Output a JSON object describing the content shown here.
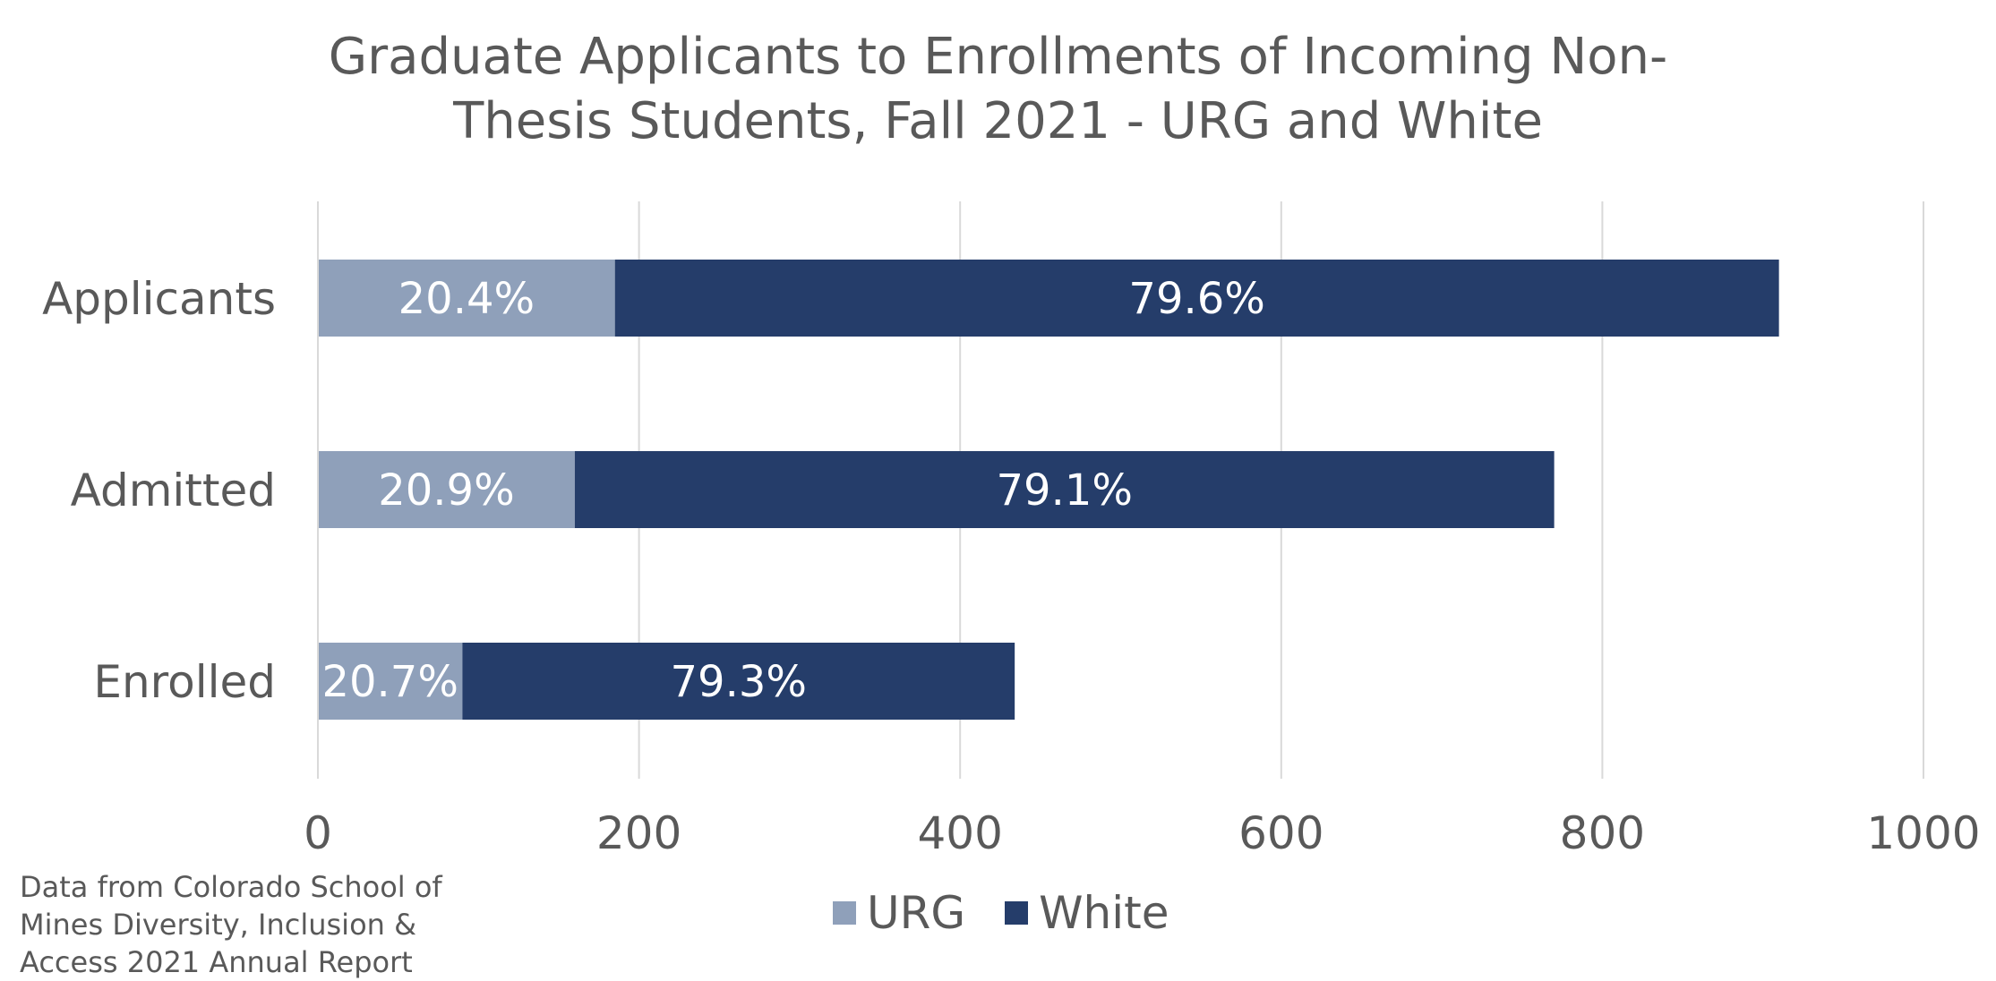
{
  "chart_data": {
    "type": "bar",
    "orientation": "horizontal",
    "stacked": true,
    "title_lines": [
      "Graduate Applicants to Enrollments of Incoming Non-",
      "Thesis Students, Fall 2021 - URG and White"
    ],
    "categories": [
      "Applicants",
      "Admitted",
      "Enrolled"
    ],
    "series": [
      {
        "name": "URG",
        "color": "#8FA0BA",
        "values": [
          185,
          160,
          90
        ],
        "labels": [
          "20.4%",
          "20.9%",
          "20.7%"
        ]
      },
      {
        "name": "White",
        "color": "#253D6A",
        "values": [
          725,
          610,
          344
        ],
        "labels": [
          "79.6%",
          "79.1%",
          "79.3%"
        ]
      }
    ],
    "xlim": [
      0,
      1000
    ],
    "xticks": [
      0,
      200,
      400,
      600,
      800,
      1000
    ],
    "xtick_labels": [
      "0",
      "200",
      "400",
      "600",
      "800",
      "1000"
    ],
    "grid": true,
    "legend_position": "bottom",
    "note_lines": [
      "Data from Colorado School of",
      "Mines Diversity, Inclusion &",
      "Access 2021 Annual Report"
    ]
  }
}
